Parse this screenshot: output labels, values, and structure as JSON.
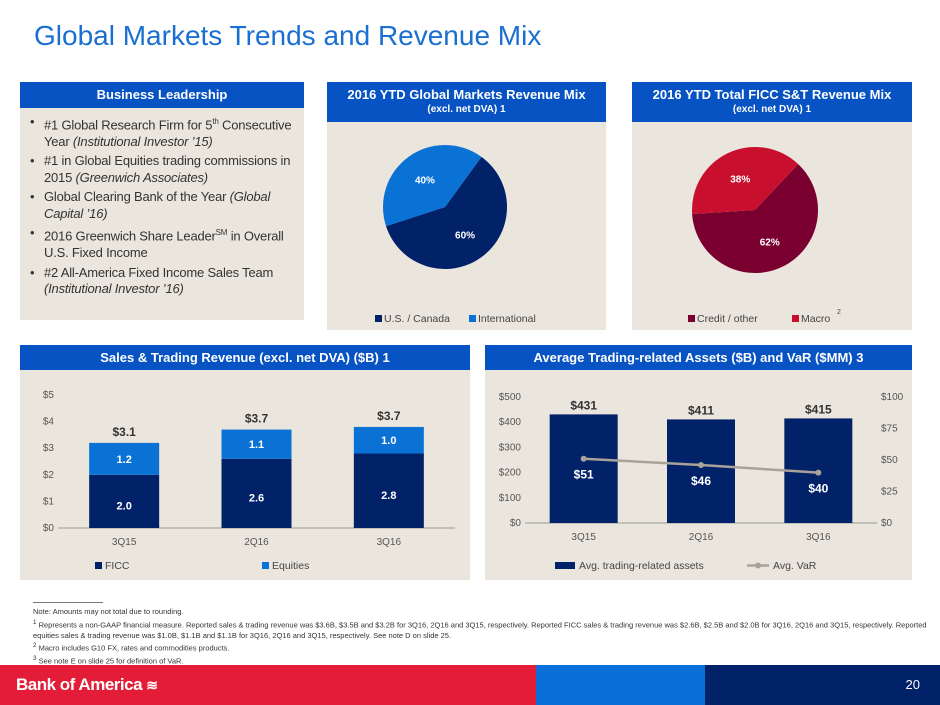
{
  "title": "Global Markets Trends and Revenue Mix",
  "leadership": {
    "header": "Business Leadership",
    "items": [
      {
        "parts": [
          {
            "t": "#1 Global Research Firm for 5"
          },
          {
            "sup": "th"
          },
          {
            "t": " Consecutive Year "
          },
          {
            "i": "(Institutional Investor ’15)"
          }
        ]
      },
      {
        "parts": [
          {
            "t": "#1 in Global Equities trading commissions in 2015 "
          },
          {
            "i": "(Greenwich Associates)"
          }
        ]
      },
      {
        "parts": [
          {
            "t": "Global Clearing Bank of the Year "
          },
          {
            "i": "(Global Capital ’16)"
          }
        ]
      },
      {
        "parts": [
          {
            "t": "2016 Greenwich Share Leader"
          },
          {
            "sup": "SM"
          },
          {
            "t": " in Overall U.S. Fixed Income"
          }
        ]
      },
      {
        "parts": [
          {
            "t": "#2 All-America Fixed Income Sales Team "
          },
          {
            "i": "(Institutional Investor ’16)"
          }
        ]
      }
    ]
  },
  "chart_data": [
    {
      "type": "pie",
      "title": "2016 YTD Global Markets Revenue Mix",
      "subtitle": "(excl. net DVA) 1",
      "labels": [
        "U.S. / Canada",
        "International"
      ],
      "values": [
        60,
        40
      ],
      "data_labels": [
        "60%",
        "40%"
      ],
      "colors": [
        "#012169",
        "#0a72d4"
      ],
      "legend": "bottom"
    },
    {
      "type": "pie",
      "title": "2016 YTD Total FICC S&T Revenue Mix",
      "subtitle": "(excl. net DVA) 1",
      "labels": [
        "Credit / other",
        "Macro"
      ],
      "label_sup": [
        "",
        "2"
      ],
      "values": [
        62,
        38
      ],
      "data_labels": [
        "62%",
        "38%"
      ],
      "colors": [
        "#7a0030",
        "#c8102e"
      ],
      "legend": "bottom"
    },
    {
      "type": "bar",
      "stacked": true,
      "title": "Sales & Trading Revenue (excl. net DVA) ($B) 1",
      "categories": [
        "3Q15",
        "2Q16",
        "3Q16"
      ],
      "series": [
        {
          "name": "FICC",
          "values": [
            2.0,
            2.6,
            2.8
          ],
          "labels": [
            "2.0",
            "2.6",
            "2.8"
          ],
          "color": "#012169"
        },
        {
          "name": "Equities",
          "values": [
            1.2,
            1.1,
            1.0
          ],
          "labels": [
            "1.2",
            "1.1",
            "1.0"
          ],
          "color": "#0a72d4"
        }
      ],
      "totals": [
        "$3.1",
        "$3.7",
        "$3.7"
      ],
      "ylim": [
        0,
        5
      ],
      "yticks": [
        "$0",
        "$1",
        "$2",
        "$3",
        "$4",
        "$5"
      ],
      "legend": "bottom"
    },
    {
      "type": "bar+line",
      "title": "Average Trading-related Assets ($B) and VaR ($MM) 3",
      "categories": [
        "3Q15",
        "2Q16",
        "3Q16"
      ],
      "bar": {
        "name": "Avg. trading-related assets",
        "values": [
          431,
          411,
          415
        ],
        "labels": [
          "$431",
          "$411",
          "$415"
        ],
        "color": "#012169"
      },
      "line": {
        "name": "Avg. VaR",
        "values": [
          51,
          46,
          40
        ],
        "labels": [
          "$51",
          "$46",
          "$40"
        ],
        "color": "#a9a299"
      },
      "ylim": [
        0,
        500
      ],
      "yticks": [
        "$0",
        "$100",
        "$200",
        "$300",
        "$400",
        "$500"
      ],
      "y2lim": [
        0,
        100
      ],
      "y2ticks": [
        "$0",
        "$25",
        "$50",
        "$75",
        "$100"
      ],
      "legend": "bottom"
    }
  ],
  "notes": [
    "Note: Amounts may not total due to rounding.",
    "Represents a non-GAAP financial measure. Reported sales & trading revenue was $3.6B, $3.5B and $3.2B for 3Q16, 2Q16 and 3Q15, respectively. Reported FICC sales & trading revenue was $2.6B, $2.5B and $2.0B for 3Q16, 2Q16 and 3Q15, respectively. Reported equities sales & trading revenue was $1.0B, $1.1B and $1.1B for 3Q16, 2Q16 and 3Q15, respectively. See note D on slide 25.",
    "Macro includes G10 FX, rates and commodities products.",
    "See note E on slide 25 for definition of VaR."
  ],
  "note_marks": [
    "1",
    "2",
    "3"
  ],
  "footer": {
    "logo": "Bank of America",
    "page": "20"
  }
}
